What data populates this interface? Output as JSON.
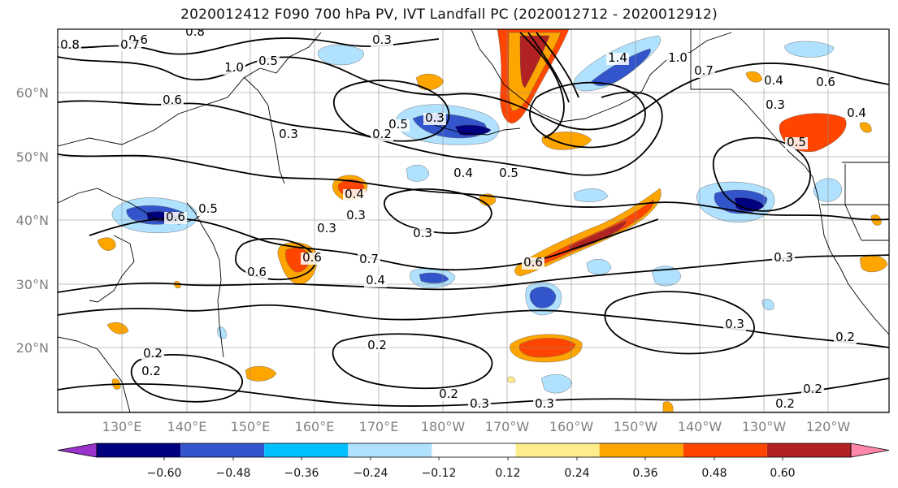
{
  "title": "2020012412 F090 700 hPa PV, IVT Landfall PC (2020012712 - 2020012912)",
  "lat_labels": [
    "60°N",
    "50°N",
    "40°N",
    "30°N",
    "20°N"
  ],
  "lon_labels": [
    "130°E",
    "140°E",
    "150°E",
    "160°E",
    "170°E",
    "180°W",
    "170°W",
    "160°W",
    "150°W",
    "140°W",
    "130°W",
    "120°W"
  ],
  "colorbar": {
    "colors": [
      "#9933cc",
      "#000080",
      "#3355cc",
      "#00bfff",
      "#b0e2ff",
      "#ffffff",
      "#ffec8b",
      "#ffa500",
      "#ff4500",
      "#b22222",
      "#ff88aa"
    ],
    "tick_labels": [
      "−0.60",
      "−0.48",
      "−0.36",
      "−0.24",
      "−0.12",
      "0.12",
      "0.24",
      "0.36",
      "0.48",
      "0.60"
    ]
  },
  "contour_labels": [
    "0.6",
    "0.7",
    "0.8",
    "0.8",
    "1.0",
    "0.5",
    "0.3",
    "0.6",
    "0.3",
    "0.5",
    "0.3",
    "1.4",
    "1.0",
    "0.7",
    "0.6",
    "0.4",
    "0.3",
    "0.4",
    "0.5",
    "0.4",
    "0.5",
    "0.4",
    "0.6",
    "0.6",
    "0.3",
    "0.7",
    "0.6",
    "0.4",
    "0.3",
    "0.2",
    "0.3",
    "0.2",
    "0.2",
    "0.3",
    "0.3",
    "0.2",
    "0.2",
    "0.2",
    "0.3",
    "0.2",
    "0.5",
    "0.6",
    "0.3",
    "0.2"
  ]
}
